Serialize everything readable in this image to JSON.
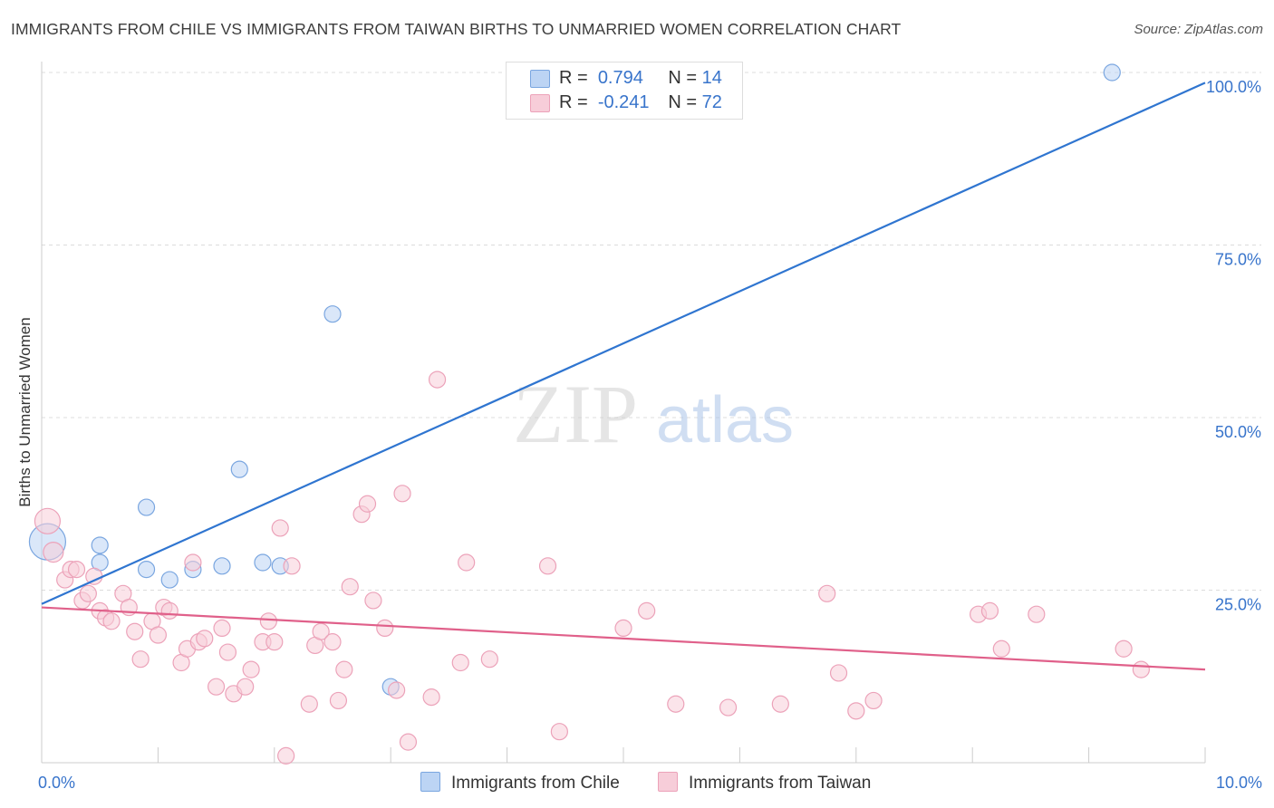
{
  "chart_data": {
    "type": "scatter",
    "title": "IMMIGRANTS FROM CHILE VS IMMIGRANTS FROM TAIWAN BIRTHS TO UNMARRIED WOMEN CORRELATION CHART",
    "source": "Source: ZipAtlas.com",
    "xlabel": "",
    "ylabel": "Births to Unmarried Women",
    "xlim": [
      0,
      10
    ],
    "ylim": [
      0,
      100
    ],
    "x_tick_labels": [
      "0.0%",
      "10.0%"
    ],
    "y_tick_labels": [
      "25.0%",
      "50.0%",
      "75.0%",
      "100.0%"
    ],
    "watermark": {
      "part1": "ZIP",
      "part2": "atlas"
    },
    "stats": [
      {
        "r_label": "R =",
        "r_value": "0.794",
        "n_label": "N =",
        "n_value": "14"
      },
      {
        "r_label": "R =",
        "r_value": "-0.241",
        "n_label": "N =",
        "n_value": "72"
      }
    ],
    "series": [
      {
        "name": "Immigrants from Chile",
        "color": "#7aa6e0",
        "fill": "#bcd4f4",
        "line_color": "#2f75d0",
        "trend": [
          [
            0,
            23.0
          ],
          [
            10,
            98.5
          ]
        ],
        "points": [
          [
            0.05,
            32.0,
            20
          ],
          [
            0.5,
            29.0,
            9
          ],
          [
            0.5,
            31.5,
            9
          ],
          [
            0.9,
            37.0,
            9
          ],
          [
            0.9,
            28.0,
            9
          ],
          [
            1.1,
            26.5,
            9
          ],
          [
            1.3,
            28.0,
            9
          ],
          [
            1.55,
            28.5,
            9
          ],
          [
            1.7,
            42.5,
            9
          ],
          [
            1.9,
            29.0,
            9
          ],
          [
            2.05,
            28.5,
            9
          ],
          [
            2.5,
            65.0,
            9
          ],
          [
            3.0,
            11.0,
            9
          ],
          [
            9.2,
            100.0,
            9
          ]
        ]
      },
      {
        "name": "Immigrants from Taiwan",
        "color": "#eca2b9",
        "fill": "#f7cdd9",
        "line_color": "#e0608a",
        "trend": [
          [
            0,
            22.5
          ],
          [
            10,
            13.5
          ]
        ],
        "points": [
          [
            0.05,
            35.0,
            14
          ],
          [
            0.1,
            30.5,
            11
          ],
          [
            0.2,
            26.5,
            9
          ],
          [
            0.25,
            28.0,
            9
          ],
          [
            0.3,
            28.0,
            9
          ],
          [
            0.35,
            23.5,
            9
          ],
          [
            0.4,
            24.5,
            9
          ],
          [
            0.45,
            27.0,
            9
          ],
          [
            0.5,
            22.0,
            9
          ],
          [
            0.55,
            21.0,
            9
          ],
          [
            0.6,
            20.5,
            9
          ],
          [
            0.7,
            24.5,
            9
          ],
          [
            0.75,
            22.5,
            9
          ],
          [
            0.8,
            19.0,
            9
          ],
          [
            0.85,
            15.0,
            9
          ],
          [
            0.95,
            20.5,
            9
          ],
          [
            1.0,
            18.5,
            9
          ],
          [
            1.05,
            22.5,
            9
          ],
          [
            1.1,
            22.0,
            9
          ],
          [
            1.2,
            14.5,
            9
          ],
          [
            1.25,
            16.5,
            9
          ],
          [
            1.3,
            29.0,
            9
          ],
          [
            1.35,
            17.5,
            9
          ],
          [
            1.4,
            18.0,
            9
          ],
          [
            1.5,
            11.0,
            9
          ],
          [
            1.55,
            19.5,
            9
          ],
          [
            1.6,
            16.0,
            9
          ],
          [
            1.65,
            10.0,
            9
          ],
          [
            1.75,
            11.0,
            9
          ],
          [
            1.8,
            13.5,
            9
          ],
          [
            1.9,
            17.5,
            9
          ],
          [
            1.95,
            20.5,
            9
          ],
          [
            2.0,
            17.5,
            9
          ],
          [
            2.05,
            34.0,
            9
          ],
          [
            2.1,
            1.0,
            9
          ],
          [
            2.15,
            28.5,
            9
          ],
          [
            2.3,
            8.5,
            9
          ],
          [
            2.35,
            17.0,
            9
          ],
          [
            2.4,
            19.0,
            9
          ],
          [
            2.5,
            17.5,
            9
          ],
          [
            2.55,
            9.0,
            9
          ],
          [
            2.6,
            13.5,
            9
          ],
          [
            2.65,
            25.5,
            9
          ],
          [
            2.75,
            36.0,
            9
          ],
          [
            2.8,
            37.5,
            9
          ],
          [
            2.85,
            23.5,
            9
          ],
          [
            2.95,
            19.5,
            9
          ],
          [
            3.05,
            10.5,
            9
          ],
          [
            3.1,
            39.0,
            9
          ],
          [
            3.15,
            3.0,
            9
          ],
          [
            3.35,
            9.5,
            9
          ],
          [
            3.4,
            55.5,
            9
          ],
          [
            3.6,
            14.5,
            9
          ],
          [
            3.65,
            29.0,
            9
          ],
          [
            3.85,
            15.0,
            9
          ],
          [
            4.35,
            28.5,
            9
          ],
          [
            4.45,
            4.5,
            9
          ],
          [
            5.0,
            19.5,
            9
          ],
          [
            5.2,
            22.0,
            9
          ],
          [
            5.45,
            8.5,
            9
          ],
          [
            5.9,
            8.0,
            9
          ],
          [
            6.35,
            8.5,
            9
          ],
          [
            6.75,
            24.5,
            9
          ],
          [
            6.85,
            13.0,
            9
          ],
          [
            7.0,
            7.5,
            9
          ],
          [
            7.15,
            9.0,
            9
          ],
          [
            8.05,
            21.5,
            9
          ],
          [
            8.15,
            22.0,
            9
          ],
          [
            8.25,
            16.5,
            9
          ],
          [
            8.55,
            21.5,
            9
          ],
          [
            9.3,
            16.5,
            9
          ],
          [
            9.45,
            13.5,
            9
          ]
        ]
      }
    ]
  }
}
